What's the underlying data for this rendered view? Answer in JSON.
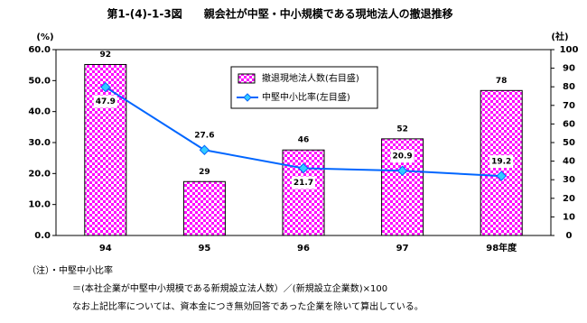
{
  "chart_data": {
    "type": "combo",
    "title": "第1-(4)-1-3図　　親会社が中堅・中小規模である現地法人の撤退推移",
    "y_label": "(%)",
    "y2_label": "(社)",
    "categories": [
      "94",
      "95",
      "96",
      "97",
      "98年度"
    ],
    "series": [
      {
        "name": "撤退現地法人数(右目盛)",
        "type": "bar",
        "axis": "y2",
        "color": "#ff00ff",
        "values": [
          92,
          29,
          46,
          52,
          78
        ]
      },
      {
        "name": "中堅中小比率(左目盛)",
        "type": "line",
        "axis": "y",
        "color": "#0066ff",
        "values": [
          47.9,
          27.6,
          21.7,
          20.9,
          19.2
        ]
      }
    ],
    "ylim": [
      0,
      60
    ],
    "yticks": [
      {
        "value": 0,
        "label": "0.0"
      },
      {
        "value": 10,
        "label": "10.0"
      },
      {
        "value": 20,
        "label": "20.0"
      },
      {
        "value": 30,
        "label": "30.0"
      },
      {
        "value": 40,
        "label": "40.0"
      },
      {
        "value": 50,
        "label": "50.0"
      },
      {
        "value": 60,
        "label": "60.0"
      }
    ],
    "y2lim": [
      0,
      100
    ],
    "y2ticks": [
      0,
      10,
      20,
      30,
      40,
      50,
      60,
      70,
      80,
      90,
      100
    ],
    "notes": [
      "（注）・中堅中小比率",
      "＝(本社企業が中堅中小規模である新規設立法人数）／(新規設立企業数)×100",
      "なお上記比率については、資本金につき無効回答であった企業を除いて算出している。"
    ]
  }
}
